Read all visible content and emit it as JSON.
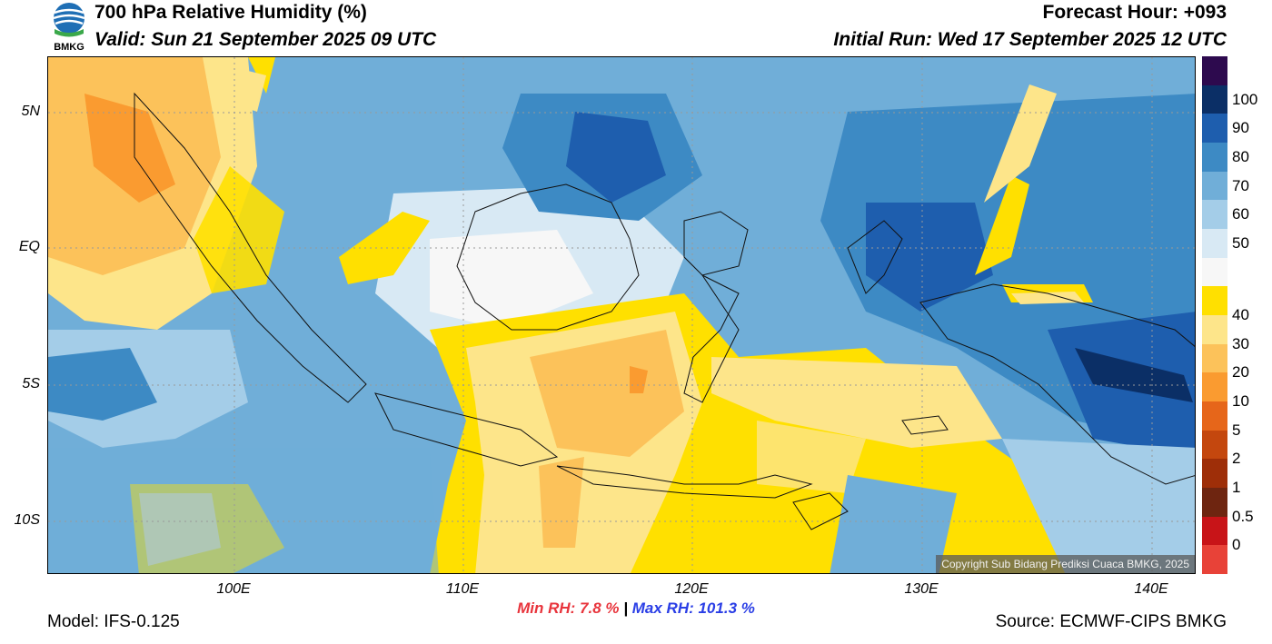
{
  "header": {
    "title": "700 hPa Relative Humidity (%)",
    "valid": "Valid: Sun 21 September 2025 09 UTC",
    "forecast_hour": "Forecast Hour: +093",
    "initial_run": "Initial Run: Wed 17 September 2025 12 UTC"
  },
  "logo": {
    "text": "BMKG"
  },
  "axes": {
    "lat_labels": [
      "5N",
      "EQ",
      "5S",
      "10S"
    ],
    "lon_labels": [
      "100E",
      "110E",
      "120E",
      "130E",
      "140E"
    ]
  },
  "colorbar": {
    "labels": [
      "100",
      "90",
      "80",
      "70",
      "60",
      "50",
      "40",
      "30",
      "20",
      "10",
      "5",
      "2",
      "1",
      "0.5",
      "0"
    ],
    "colors": [
      "#2d0a4e",
      "#0b2f66",
      "#1e5eae",
      "#3d8ac4",
      "#70aed8",
      "#a4cde8",
      "#d8e9f4",
      "#f7f7f7",
      "#ffe000",
      "#fde58a",
      "#fcc25a",
      "#fa9b30",
      "#e6661a",
      "#c4470e",
      "#9e2e08",
      "#6e2510",
      "#c81418",
      "#e84238"
    ]
  },
  "stats": {
    "min_rh": "Min RH:   7.8 %",
    "separator": "|",
    "max_rh": "Max RH: 101.3 %"
  },
  "footer": {
    "model": "Model: IFS-0.125",
    "source": "Source: ECMWF-CIPS BMKG",
    "copyright": "Copyright Sub Bidang Prediksi Cuaca BMKG, 2025"
  }
}
